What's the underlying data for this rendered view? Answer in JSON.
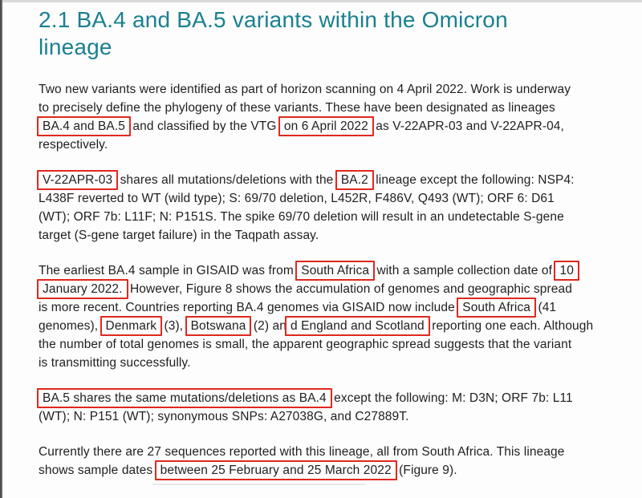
{
  "theme": {
    "accent_color": "#1a8090",
    "annotation_color": "#e1281e",
    "text_color": "#1f1f1f",
    "page_background": "#fdfdfd"
  },
  "document": {
    "heading": {
      "lines": [
        [
          {
            "text": "2.1 BA.4 and BA.5 variants within the Omicron"
          }
        ],
        [
          {
            "text": "lineage"
          }
        ]
      ]
    },
    "paragraphs": [
      {
        "lines": [
          [
            {
              "text": "Two new variants were identified as part of horizon scanning on 4 April 2022. Work is underway"
            }
          ],
          [
            {
              "text": "to precisely define the phylogeny of these variants. These have been designated as lineages"
            }
          ],
          [
            {
              "text": "BA.4 and BA.5",
              "boxed": true
            },
            {
              "text": " and classified by the VTG "
            },
            {
              "text": "on 6 April 2022",
              "boxed": true
            },
            {
              "text": " as V-22APR-03 and V-22APR-04,"
            }
          ],
          [
            {
              "text": "respectively."
            }
          ]
        ]
      },
      {
        "lines": [
          [
            {
              "text": "V-22APR-03",
              "boxed": true
            },
            {
              "text": " shares all mutations/deletions with the "
            },
            {
              "text": "BA.2",
              "boxed": true
            },
            {
              "text": " lineage except the following: NSP4:"
            }
          ],
          [
            {
              "text": "L438F reverted to WT (wild type); S: 69/70 deletion, L452R, F486V, Q493 (WT); ORF 6: D61"
            }
          ],
          [
            {
              "text": "(WT); ORF 7b: L11F; N: P151S. The spike 69/70 deletion will result in an undetectable S-gene"
            }
          ],
          [
            {
              "text": "target (S-gene target failure) in the Taqpath assay."
            }
          ]
        ]
      },
      {
        "lines": [
          [
            {
              "text": "The earliest BA.4 sample in GISAID was from "
            },
            {
              "text": "South Africa",
              "boxed": true
            },
            {
              "text": " with a sample collection date of "
            },
            {
              "text": "10",
              "boxed": true
            }
          ],
          [
            {
              "text": "January 2022.",
              "boxed": true
            },
            {
              "text": " However, Figure 8 shows the accumulation of genomes and geographic spread"
            }
          ],
          [
            {
              "text": "is more recent. Countries reporting BA.4 genomes via GISAID now include "
            },
            {
              "text": "South Africa",
              "boxed": true
            },
            {
              "text": " (41"
            }
          ],
          [
            {
              "text": "genomes), "
            },
            {
              "text": "Denmark",
              "boxed": true
            },
            {
              "text": " (3), "
            },
            {
              "text": "Botswana",
              "boxed": true
            },
            {
              "text": " (2) an"
            },
            {
              "text": "d England and Scotland",
              "boxed": true
            },
            {
              "text": " reporting one each. Although"
            }
          ],
          [
            {
              "text": "the number of total genomes is small, the apparent geographic spread suggests that the variant"
            }
          ],
          [
            {
              "text": "is transmitting successfully."
            }
          ]
        ]
      },
      {
        "lines": [
          [
            {
              "text": "BA.5 shares the same mutations/deletions as BA.4",
              "boxed": true
            },
            {
              "text": " except the following: M: D3N; ORF 7b: L11"
            }
          ],
          [
            {
              "text": "(WT); N: P151 (WT); synonymous SNPs: A27038G, and C27889T."
            }
          ]
        ]
      },
      {
        "lines": [
          [
            {
              "text": "Currently there are 27 sequences reported with this lineage, all from South Africa. This lineage"
            }
          ],
          [
            {
              "text": "shows sample dates "
            },
            {
              "text": "between 25 February and 25 March 2022",
              "boxed": true
            },
            {
              "text": " (Figure 9)."
            }
          ]
        ]
      }
    ]
  }
}
